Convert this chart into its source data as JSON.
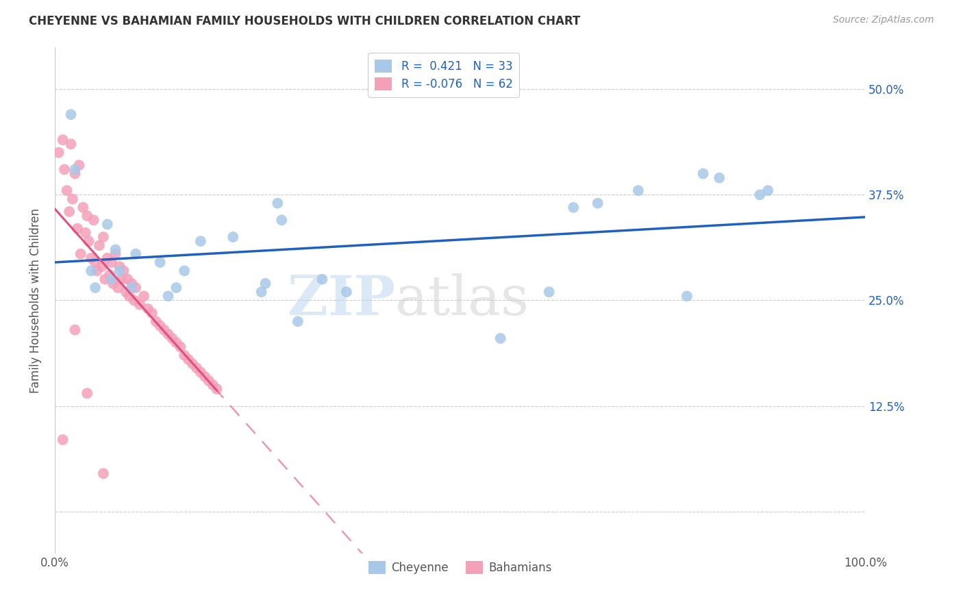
{
  "title": "CHEYENNE VS BAHAMIAN FAMILY HOUSEHOLDS WITH CHILDREN CORRELATION CHART",
  "source": "Source: ZipAtlas.com",
  "ylabel": "Family Households with Children",
  "xlim": [
    0,
    100
  ],
  "ylim": [
    -5,
    55
  ],
  "yticks": [
    0,
    12.5,
    25.0,
    37.5,
    50.0
  ],
  "ytick_labels": [
    "",
    "12.5%",
    "25.0%",
    "37.5%",
    "50.0%"
  ],
  "xticks": [
    0,
    10,
    20,
    30,
    40,
    50,
    60,
    70,
    80,
    90,
    100
  ],
  "xtick_labels": [
    "0.0%",
    "",
    "",
    "",
    "",
    "",
    "",
    "",
    "",
    "",
    "100.0%"
  ],
  "cheyenne_R": 0.421,
  "cheyenne_N": 33,
  "bahamian_R": -0.076,
  "bahamian_N": 62,
  "cheyenne_color": "#a8c8e8",
  "bahamian_color": "#f4a0b8",
  "cheyenne_line_color": "#2060c0",
  "bahamian_line_color": "#e05080",
  "background_color": "#ffffff",
  "watermark_zip": "ZIP",
  "watermark_atlas": "atlas",
  "cheyenne_x": [
    2.0,
    2.5,
    4.5,
    5.0,
    6.5,
    7.0,
    7.5,
    8.0,
    9.5,
    10.0,
    13.0,
    14.0,
    15.0,
    16.0,
    18.0,
    22.0,
    25.5,
    26.0,
    27.5,
    28.0,
    30.0,
    33.0,
    36.0,
    55.0,
    61.0,
    64.0,
    67.0,
    72.0,
    78.0,
    80.0,
    82.0,
    87.0,
    88.0
  ],
  "cheyenne_y": [
    47.0,
    40.5,
    28.5,
    26.5,
    34.0,
    27.5,
    31.0,
    28.5,
    26.5,
    30.5,
    29.5,
    25.5,
    26.5,
    28.5,
    32.0,
    32.5,
    26.0,
    27.0,
    36.5,
    34.5,
    22.5,
    27.5,
    26.0,
    20.5,
    26.0,
    36.0,
    36.5,
    38.0,
    25.5,
    40.0,
    39.5,
    37.5,
    38.0
  ],
  "bahamian_x": [
    0.5,
    1.0,
    1.2,
    1.5,
    1.8,
    2.0,
    2.2,
    2.5,
    2.8,
    3.0,
    3.2,
    3.5,
    3.8,
    4.0,
    4.2,
    4.5,
    4.8,
    5.0,
    5.2,
    5.5,
    5.8,
    6.0,
    6.2,
    6.5,
    6.8,
    7.0,
    7.2,
    7.5,
    7.8,
    8.0,
    8.2,
    8.5,
    8.8,
    9.0,
    9.2,
    9.5,
    9.8,
    10.0,
    10.5,
    11.0,
    11.5,
    12.0,
    12.5,
    13.0,
    13.5,
    14.0,
    14.5,
    15.0,
    15.5,
    16.0,
    16.5,
    17.0,
    17.5,
    18.0,
    18.5,
    19.0,
    19.5,
    20.0,
    1.0,
    2.5,
    4.0,
    6.0
  ],
  "bahamian_y": [
    42.5,
    44.0,
    40.5,
    38.0,
    35.5,
    43.5,
    37.0,
    40.0,
    33.5,
    41.0,
    30.5,
    36.0,
    33.0,
    35.0,
    32.0,
    30.0,
    34.5,
    29.5,
    28.5,
    31.5,
    29.0,
    32.5,
    27.5,
    30.0,
    28.0,
    29.5,
    27.0,
    30.5,
    26.5,
    29.0,
    27.5,
    28.5,
    26.0,
    27.5,
    25.5,
    27.0,
    25.0,
    26.5,
    24.5,
    25.5,
    24.0,
    23.5,
    22.5,
    22.0,
    21.5,
    21.0,
    20.5,
    20.0,
    19.5,
    18.5,
    18.0,
    17.5,
    17.0,
    16.5,
    16.0,
    15.5,
    15.0,
    14.5,
    8.5,
    21.5,
    14.0,
    4.5
  ]
}
